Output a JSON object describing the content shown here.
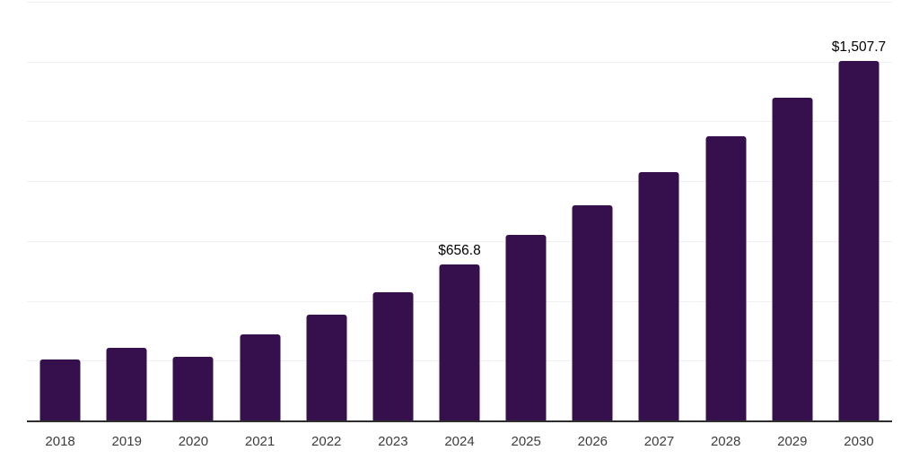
{
  "chart": {
    "colors": {
      "bar": "#35104d",
      "gridline": "#f0f0f0",
      "axis_line": "#2e2e2e",
      "tick_label": "#3d3d3d",
      "data_label": "#000000",
      "background": "#ffffff"
    }
  },
  "chart_data": {
    "type": "bar",
    "title": "",
    "xlabel": "",
    "ylabel": "",
    "categories": [
      "2018",
      "2019",
      "2020",
      "2021",
      "2022",
      "2023",
      "2024",
      "2025",
      "2026",
      "2027",
      "2028",
      "2029",
      "2030"
    ],
    "values": [
      259,
      308,
      270,
      364,
      446,
      540,
      656.8,
      780,
      904,
      1043,
      1193,
      1354,
      1507.7
    ],
    "data_labels": [
      "",
      "",
      "",
      "",
      "",
      "",
      "$656.8",
      "",
      "",
      "",
      "",
      "",
      "$1,507.7"
    ],
    "ylim": [
      0,
      1750
    ],
    "gridline_interval": 250,
    "grid": true,
    "legend": false,
    "y_axis_labels_visible": false
  }
}
